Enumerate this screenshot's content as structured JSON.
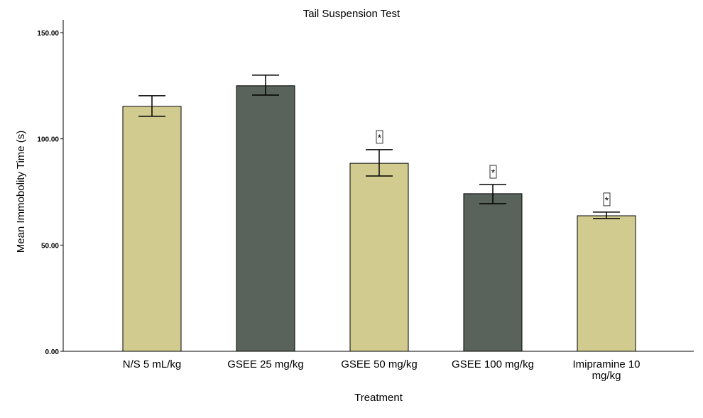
{
  "chart_data": {
    "type": "bar",
    "title": "Tail Suspension Test",
    "xlabel": "Treatment",
    "ylabel": "Mean Immobolity Time (s)",
    "ylim": [
      0,
      150
    ],
    "yticks": [
      "0.00",
      "50.00",
      "100.00",
      "150.00"
    ],
    "categories": [
      "N/S 5 mL/kg",
      "GSEE 25 mg/kg",
      "GSEE 50 mg/kg",
      "GSEE 100 mg/kg",
      "Imipramine 10 mg/kg"
    ],
    "values": [
      115.3,
      125.0,
      88.5,
      74.2,
      63.8
    ],
    "error_upper": [
      120.3,
      130.0,
      94.9,
      78.5,
      65.5
    ],
    "error_lower": [
      110.6,
      120.6,
      82.5,
      69.5,
      62.5
    ],
    "annotations": [
      "",
      "",
      "*",
      "*",
      "*"
    ],
    "colors": [
      "#d1cb8f",
      "#59635b",
      "#d1cb8f",
      "#59635b",
      "#d1cb8f"
    ],
    "grid": false,
    "legend": "none"
  }
}
